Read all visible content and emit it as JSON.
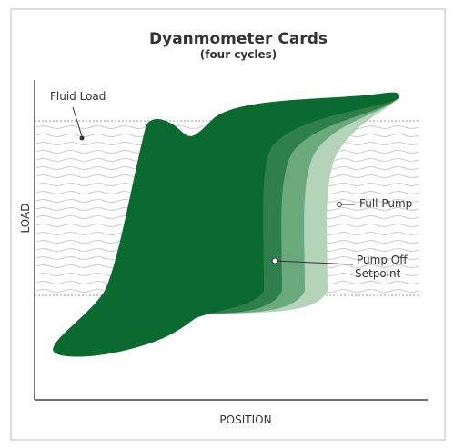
{
  "title": "Dyanmometer Cards",
  "subtitle": "(four cycles)",
  "axes": {
    "y": "LOAD",
    "x": "POSITION"
  },
  "labels": {
    "fluid_load": "Fluid Load",
    "full_pump": "Full Pump",
    "pump_off": [
      "Pump Off",
      "Setpoint"
    ]
  }
}
